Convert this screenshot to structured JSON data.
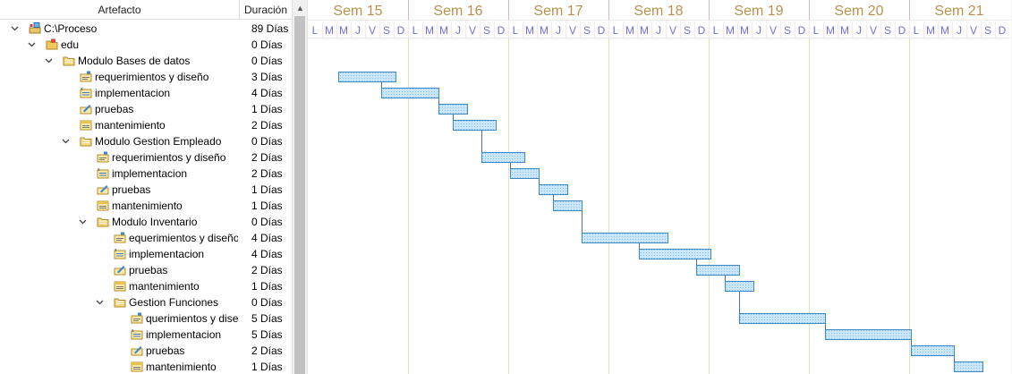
{
  "columns": {
    "artifact": "Artefacto",
    "duration": "Duración"
  },
  "rows": [
    {
      "level": 0,
      "expand": "v",
      "icon": "project",
      "name": "C:\\Proceso",
      "duration": "89 Días"
    },
    {
      "level": 1,
      "expand": "v",
      "icon": "folder-red",
      "name": "edu",
      "duration": "0 Días"
    },
    {
      "level": 2,
      "expand": "v",
      "icon": "folder-open",
      "name": "Modulo Bases de datos",
      "duration": "0 Días"
    },
    {
      "level": 3,
      "expand": "",
      "icon": "task-req",
      "name": "requerimientos y diseño",
      "duration": "3 Días"
    },
    {
      "level": 3,
      "expand": "",
      "icon": "task-impl",
      "name": "implementacion",
      "duration": "4 Días"
    },
    {
      "level": 3,
      "expand": "",
      "icon": "task-test",
      "name": "pruebas",
      "duration": "1 Días"
    },
    {
      "level": 3,
      "expand": "",
      "icon": "task-maint",
      "name": "mantenimiento",
      "duration": "2 Días"
    },
    {
      "level": 3,
      "expand": "v",
      "icon": "folder-open",
      "name": "Modulo Gestion Empleado",
      "duration": "0 Días"
    },
    {
      "level": 4,
      "expand": "",
      "icon": "task-req",
      "name": "requerimientos y diseño",
      "duration": "2 Días"
    },
    {
      "level": 4,
      "expand": "",
      "icon": "task-impl",
      "name": "implementacion",
      "duration": "2 Días"
    },
    {
      "level": 4,
      "expand": "",
      "icon": "task-test",
      "name": "pruebas",
      "duration": "1 Días"
    },
    {
      "level": 4,
      "expand": "",
      "icon": "task-maint",
      "name": "mantenimiento",
      "duration": "1 Días"
    },
    {
      "level": 4,
      "expand": "v",
      "icon": "folder-open",
      "name": "Modulo Inventario",
      "duration": "0 Días"
    },
    {
      "level": 5,
      "expand": "",
      "icon": "task-req",
      "name": "equerimientos y diseño",
      "duration": "4 Días"
    },
    {
      "level": 5,
      "expand": "",
      "icon": "task-impl",
      "name": "implementacion",
      "duration": "4 Días"
    },
    {
      "level": 5,
      "expand": "",
      "icon": "task-test",
      "name": "pruebas",
      "duration": "2 Días"
    },
    {
      "level": 5,
      "expand": "",
      "icon": "task-maint",
      "name": "mantenimiento",
      "duration": "1 Días"
    },
    {
      "level": 5,
      "expand": "v",
      "icon": "folder-open",
      "name": "Gestion Funciones",
      "duration": "0 Días"
    },
    {
      "level": 6,
      "expand": "",
      "icon": "task-req",
      "name": "querimientos y dise",
      "duration": "5 Días"
    },
    {
      "level": 6,
      "expand": "",
      "icon": "task-impl",
      "name": "implementacion",
      "duration": "5 Días"
    },
    {
      "level": 6,
      "expand": "",
      "icon": "task-test",
      "name": "pruebas",
      "duration": "2 Días"
    },
    {
      "level": 6,
      "expand": "",
      "icon": "task-maint",
      "name": "mantenimiento",
      "duration": "1 Días"
    }
  ],
  "timeline": {
    "weeks": [
      "Sem 15",
      "Sem 16",
      "Sem 17",
      "Sem 18",
      "Sem 19",
      "Sem 20",
      "Sem 21"
    ],
    "days": [
      "L",
      "M",
      "M",
      "J",
      "V",
      "S",
      "D"
    ]
  },
  "tasks": [
    {
      "row": 3,
      "start_day": 2,
      "days": 4
    },
    {
      "row": 4,
      "start_day": 5,
      "days": 4
    },
    {
      "row": 5,
      "start_day": 9,
      "days": 2
    },
    {
      "row": 6,
      "start_day": 10,
      "days": 3
    },
    {
      "row": 8,
      "start_day": 12,
      "days": 3
    },
    {
      "row": 9,
      "start_day": 14,
      "days": 2
    },
    {
      "row": 10,
      "start_day": 16,
      "days": 2
    },
    {
      "row": 11,
      "start_day": 17,
      "days": 2
    },
    {
      "row": 13,
      "start_day": 19,
      "days": 6
    },
    {
      "row": 14,
      "start_day": 23,
      "days": 5
    },
    {
      "row": 15,
      "start_day": 27,
      "days": 3
    },
    {
      "row": 16,
      "start_day": 29,
      "days": 2
    },
    {
      "row": 18,
      "start_day": 30,
      "days": 6
    },
    {
      "row": 19,
      "start_day": 36,
      "days": 6
    },
    {
      "row": 20,
      "start_day": 42,
      "days": 3
    },
    {
      "row": 21,
      "start_day": 45,
      "days": 2
    }
  ],
  "colors": {
    "week_text": "#b9924e",
    "day_text": "#6f6fd6",
    "bar_fill": "#c9e6fb",
    "bar_stroke": "#3f89c8",
    "week_line": "#e5e2b6",
    "link": "#4b6fa8"
  }
}
